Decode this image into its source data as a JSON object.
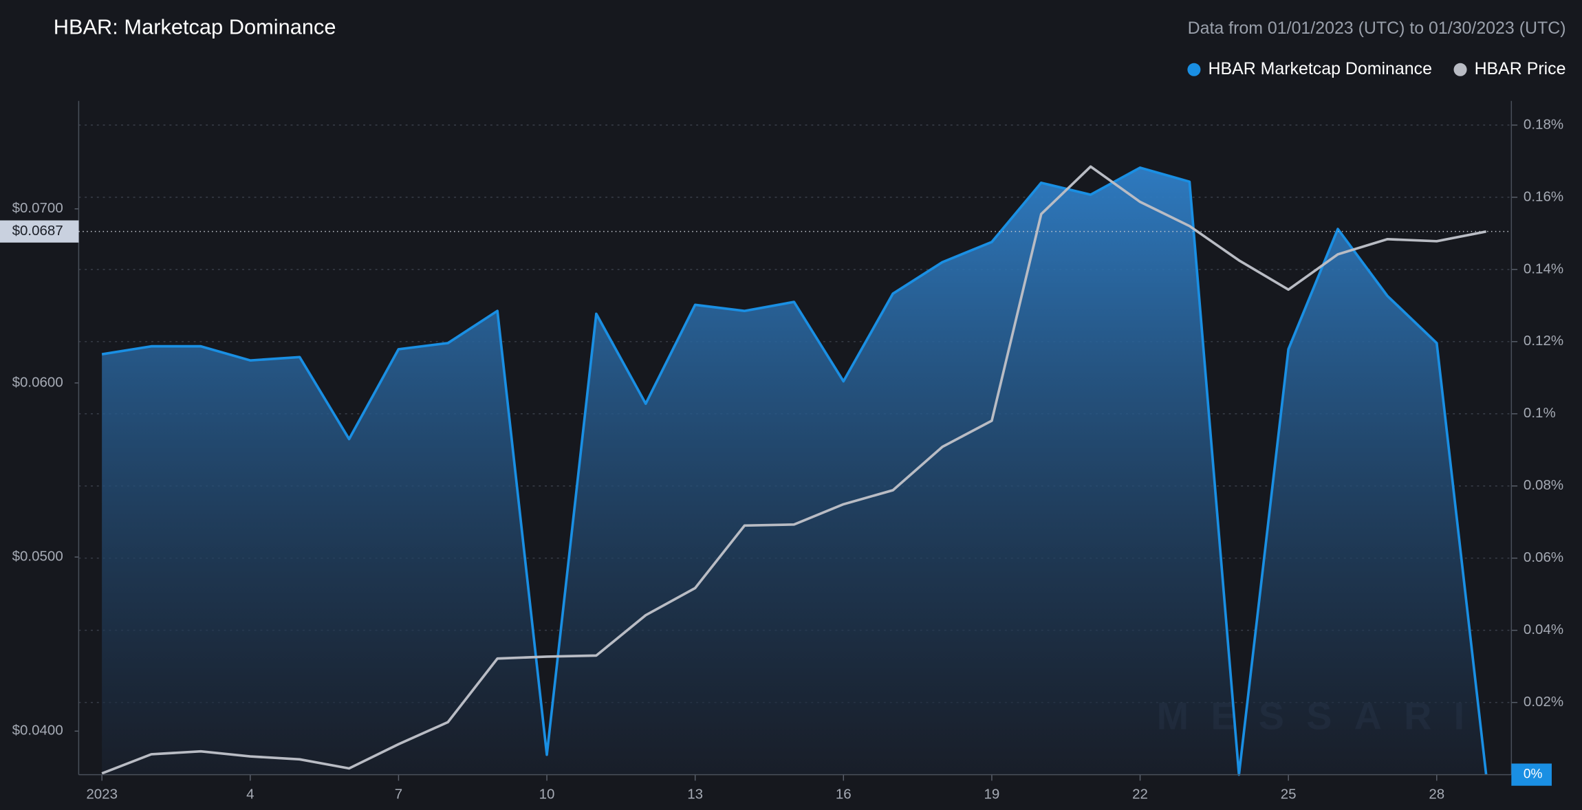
{
  "chart_data": {
    "type": "line",
    "title": "HBAR: Marketcap Dominance",
    "subtitle": "Data from 01/01/2023 (UTC) to 01/30/2023 (UTC)",
    "watermark": "MESSARI",
    "x": [
      1,
      2,
      3,
      4,
      5,
      6,
      7,
      8,
      9,
      10,
      11,
      12,
      13,
      14,
      15,
      16,
      17,
      18,
      19,
      20,
      21,
      22,
      23,
      24,
      25,
      26,
      27,
      28,
      29
    ],
    "xlim": [
      0.53,
      29.51
    ],
    "xticks": [
      {
        "value": 1,
        "label": "2023"
      },
      4,
      7,
      10,
      13,
      16,
      19,
      22,
      25,
      28
    ],
    "ylim": [
      0.0375,
      0.0762
    ],
    "yticks": [
      {
        "value": 0.04,
        "label": "$0.0400"
      },
      {
        "value": 0.05,
        "label": "$0.0500"
      },
      {
        "value": 0.06,
        "label": "$0.0600"
      },
      {
        "value": 0.07,
        "label": "$0.0700"
      }
    ],
    "y2lim": [
      0,
      0.1867
    ],
    "y2ticks": [
      {
        "value": 0.02,
        "label": "0.02%"
      },
      {
        "value": 0.04,
        "label": "0.04%"
      },
      {
        "value": 0.06,
        "label": "0.06%"
      },
      {
        "value": 0.08,
        "label": "0.08%"
      },
      {
        "value": 0.1,
        "label": "0.1%"
      },
      {
        "value": 0.12,
        "label": "0.12%"
      },
      {
        "value": 0.14,
        "label": "0.14%"
      },
      {
        "value": 0.16,
        "label": "0.16%"
      },
      {
        "value": 0.18,
        "label": "0.18%"
      }
    ],
    "grid": true,
    "legend": "top-right",
    "price_marker": {
      "value": 0.0687,
      "label": "$0.0687"
    },
    "dominance_marker": {
      "value": 0,
      "label": "0%"
    },
    "series": [
      {
        "name": "HBAR Marketcap Dominance",
        "color": "#1a8fe3",
        "axis": "y2",
        "area": true,
        "values": [
          0.1165,
          0.1187,
          0.1187,
          0.1148,
          0.1157,
          0.093,
          0.1179,
          0.1196,
          0.1285,
          0.0055,
          0.1277,
          0.1028,
          0.1302,
          0.1285,
          0.131,
          0.109,
          0.1333,
          0.142,
          0.1476,
          0.164,
          0.1607,
          0.1682,
          0.1643,
          0,
          0.1179,
          0.1512,
          0.1327,
          0.1196,
          0
        ]
      },
      {
        "name": "HBAR Price",
        "color": "#b9bcc4",
        "values": [
          0.03757,
          0.03867,
          0.03884,
          0.03855,
          0.03838,
          0.03786,
          0.03925,
          0.04052,
          0.04417,
          0.04428,
          0.04434,
          0.04666,
          0.04822,
          0.05181,
          0.05187,
          0.05303,
          0.05384,
          0.05633,
          0.05783,
          0.0697,
          0.07243,
          0.0704,
          0.06901,
          0.06704,
          0.06536,
          0.06739,
          0.06826,
          0.06814,
          0.0687
        ]
      }
    ]
  }
}
